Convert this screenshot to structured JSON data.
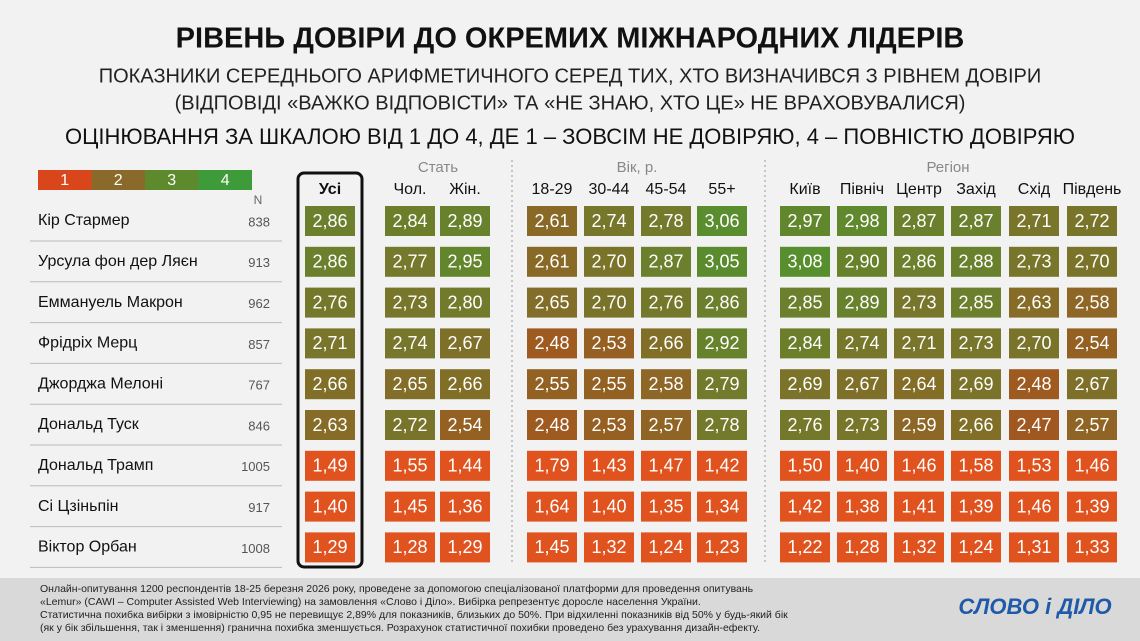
{
  "title": "РІВЕНЬ ДОВІРИ ДО ОКРЕМИХ МІЖНАРОДНИХ ЛІДЕРІВ",
  "subtitle": [
    "ПОКАЗНИКИ СЕРЕДНЬОГО АРИФМЕТИЧНОГО СЕРЕД ТИХ, ХТО ВИЗНАЧИВСЯ З РІВНЕМ ДОВІРИ",
    "(ВІДПОВІДІ «ВАЖКО ВІДПОВІСТИ» ТА «НЕ ЗНАЮ, ХТО ЦЕ» НЕ ВРАХОВУВАЛИСЯ)"
  ],
  "scale_note": "ОЦІНЮВАННЯ ЗА ШКАЛОЮ ВІД 1 ДО 4, ДЕ 1 – ЗОВСІМ НЕ ДОВІРЯЮ, 4 – ПОВНІСТЮ ДОВІРЯЮ",
  "legend": {
    "items": [
      {
        "label": "1",
        "color": "#d9461c"
      },
      {
        "label": "2",
        "color": "#8a6a2a"
      },
      {
        "label": "3",
        "color": "#5e8a2e"
      },
      {
        "label": "4",
        "color": "#3f9a3a"
      }
    ]
  },
  "n_header": "N",
  "groups": [
    "Стать",
    "Вік, р.",
    "Регіон"
  ],
  "columns": [
    "Усі",
    "Чол.",
    "Жін.",
    "18-29",
    "30-44",
    "45-54",
    "55+",
    "Київ",
    "Північ",
    "Центр",
    "Захід",
    "Схід",
    "Південь"
  ],
  "rows": [
    {
      "name": "Кір Стармер",
      "n": "838",
      "values": [
        "2,86",
        "2,84",
        "2,89",
        "2,61",
        "2,74",
        "2,78",
        "3,06",
        "2,97",
        "2,98",
        "2,87",
        "2,87",
        "2,71",
        "2,72"
      ]
    },
    {
      "name": "Урсула фон дер Ляєн",
      "n": "913",
      "values": [
        "2,86",
        "2,77",
        "2,95",
        "2,61",
        "2,70",
        "2,87",
        "3,05",
        "3,08",
        "2,90",
        "2,86",
        "2,88",
        "2,73",
        "2,70"
      ]
    },
    {
      "name": "Еммануель Макрон",
      "n": "962",
      "values": [
        "2,76",
        "2,73",
        "2,80",
        "2,65",
        "2,70",
        "2,76",
        "2,86",
        "2,85",
        "2,89",
        "2,73",
        "2,85",
        "2,63",
        "2,58"
      ]
    },
    {
      "name": "Фрідріх Мерц",
      "n": "857",
      "values": [
        "2,71",
        "2,74",
        "2,67",
        "2,48",
        "2,53",
        "2,66",
        "2,92",
        "2,84",
        "2,74",
        "2,71",
        "2,73",
        "2,70",
        "2,54"
      ]
    },
    {
      "name": "Джорджа Мелоні",
      "n": "767",
      "values": [
        "2,66",
        "2,65",
        "2,66",
        "2,55",
        "2,55",
        "2,58",
        "2,79",
        "2,69",
        "2,67",
        "2,64",
        "2,69",
        "2,48",
        "2,67"
      ]
    },
    {
      "name": "Дональд Туск",
      "n": "846",
      "values": [
        "2,63",
        "2,72",
        "2,54",
        "2,48",
        "2,53",
        "2,57",
        "2,78",
        "2,76",
        "2,73",
        "2,59",
        "2,66",
        "2,47",
        "2,57"
      ]
    },
    {
      "name": "Дональд Трамп",
      "n": "1005",
      "values": [
        "1,49",
        "1,55",
        "1,44",
        "1,79",
        "1,43",
        "1,47",
        "1,42",
        "1,50",
        "1,40",
        "1,46",
        "1,58",
        "1,53",
        "1,46"
      ]
    },
    {
      "name": "Сі Цзіньпін",
      "n": "917",
      "values": [
        "1,40",
        "1,45",
        "1,36",
        "1,64",
        "1,40",
        "1,35",
        "1,34",
        "1,42",
        "1,38",
        "1,41",
        "1,39",
        "1,46",
        "1,39"
      ]
    },
    {
      "name": "Віктор Орбан",
      "n": "1008",
      "values": [
        "1,29",
        "1,28",
        "1,29",
        "1,45",
        "1,32",
        "1,24",
        "1,23",
        "1,22",
        "1,28",
        "1,32",
        "1,24",
        "1,31",
        "1,33"
      ]
    }
  ],
  "footer": [
    "Онлайн-опитування 1200 респондентів 18-25 березня 2026 року, проведене за допомогою спеціалізованої платформи для проведення опитувань",
    "«Lemur» (CAWI – Computer Assisted Web Interviewing) на замовлення «Слово і Діло». Вибірка репрезентує доросле населення України.",
    "Статистична похибка вибірки з імовірністю 0,95 не перевищує 2,89% для показників, близьких до 50%. При відхиленні показників від 50% у будь-який бік",
    "(як у бік збільшення, так і зменшення) гранична похибка зменшується. Розрахунок статистичної похибки проведено без урахування дизайн-ефекту."
  ],
  "logo": "СЛОВО і ДІЛО"
}
